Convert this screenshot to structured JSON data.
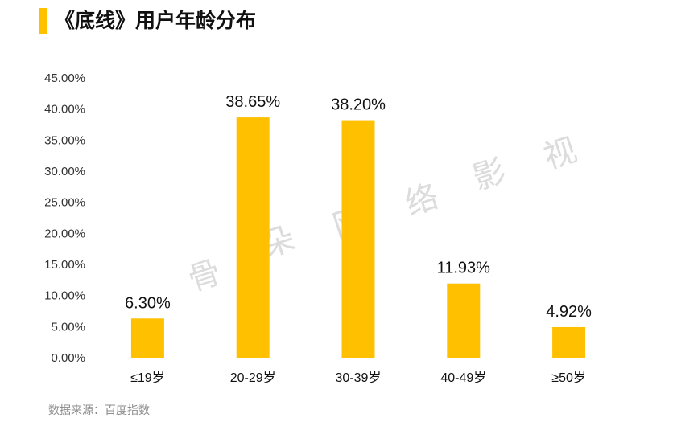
{
  "header": {
    "title": "《底线》用户年龄分布"
  },
  "watermark": {
    "chars": [
      "骨",
      "朵",
      "网",
      "络",
      "影",
      "视"
    ]
  },
  "footer": {
    "source": "数据来源：百度指数"
  },
  "colors": {
    "bar": "#FFC000",
    "axis": "#d9d9d9",
    "text": "#333333",
    "watermark": "#dcdcdc"
  },
  "chart_data": {
    "type": "bar",
    "title": "《底线》用户年龄分布",
    "categories": [
      "≤19岁",
      "20-29岁",
      "30-39岁",
      "40-49岁",
      "≥50岁"
    ],
    "values": [
      6.3,
      38.65,
      38.2,
      11.93,
      4.92
    ],
    "value_labels": [
      "6.30%",
      "38.65%",
      "38.20%",
      "11.93%",
      "4.92%"
    ],
    "ylim": [
      0,
      45
    ],
    "yticks": [
      0,
      5,
      10,
      15,
      20,
      25,
      30,
      35,
      40,
      45
    ],
    "ytick_labels": [
      "0.00%",
      "5.00%",
      "10.00%",
      "15.00%",
      "20.00%",
      "25.00%",
      "30.00%",
      "35.00%",
      "40.00%",
      "45.00%"
    ],
    "xlabel": "",
    "ylabel": "",
    "grid": false,
    "legend": "none"
  }
}
